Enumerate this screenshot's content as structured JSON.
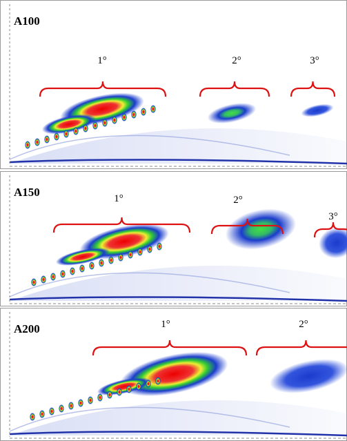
{
  "panels": [
    {
      "title": "A100",
      "brackets": [
        "1°",
        "2°",
        "3°"
      ]
    },
    {
      "title": "A150",
      "brackets": [
        "1°",
        "2°",
        "3°"
      ]
    },
    {
      "title": "A200",
      "brackets": [
        "1°",
        "2°"
      ]
    }
  ]
}
